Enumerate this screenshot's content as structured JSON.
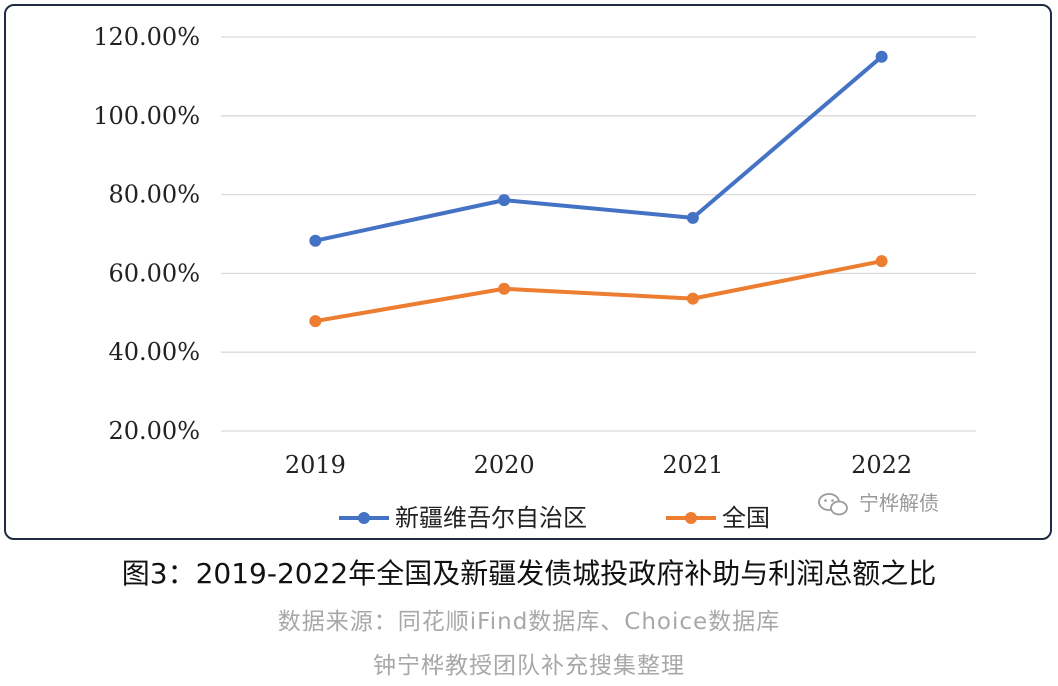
{
  "chart_data": {
    "type": "line",
    "categories": [
      "2019",
      "2020",
      "2021",
      "2022"
    ],
    "series": [
      {
        "name": "新疆维吾尔自治区",
        "values": [
          68.3,
          78.6,
          74.1,
          115.0
        ],
        "color": "#4472c4"
      },
      {
        "name": "全国",
        "values": [
          47.9,
          56.1,
          53.6,
          63.1
        ],
        "color": "#ed7d31"
      }
    ],
    "y_ticks": [
      "20.00%",
      "40.00%",
      "60.00%",
      "80.00%",
      "100.00%",
      "120.00%"
    ],
    "ylim": [
      20,
      120
    ],
    "grid": true,
    "legend_position": "bottom"
  },
  "watermark": {
    "text": "宁桦解债",
    "icon": "wechat-icon"
  },
  "caption": "图3：2019-2022年全国及新疆发债城投政府补助与利润总额之比",
  "source": "数据来源：同花顺iFind数据库、Choice数据库",
  "compiled_by": "钟宁桦教授团队补充搜集整理"
}
